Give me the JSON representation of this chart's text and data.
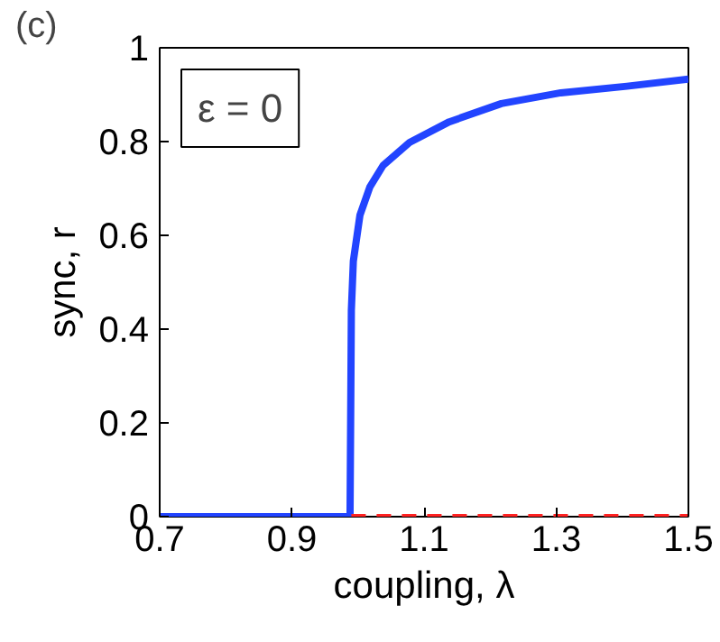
{
  "chart_data": {
    "type": "line",
    "title": "(c)",
    "xlabel": "coupling, λ",
    "ylabel": "sync, r",
    "annotations": [
      "ε = 0"
    ],
    "xlim": [
      0.7,
      1.5
    ],
    "xticks": [
      0.7,
      0.9,
      1.1,
      1.3,
      1.5
    ],
    "ylim": [
      0,
      1
    ],
    "yticks": [
      0,
      0.2,
      0.4,
      0.6,
      0.8,
      1
    ],
    "grid": false,
    "series": [
      {
        "color": "#2244ff",
        "line_style": "solid",
        "x": [
          0.7,
          0.988,
          0.99,
          0.993,
          1.003,
          1.018,
          1.038,
          1.078,
          1.138,
          1.217,
          1.307,
          1.407,
          1.5
        ],
        "values": [
          0,
          0,
          0.44,
          0.545,
          0.643,
          0.703,
          0.749,
          0.798,
          0.842,
          0.881,
          0.904,
          0.918,
          0.933
        ]
      },
      {
        "color": "#ff2222",
        "line_style": "dashed",
        "x": [
          0.99,
          1.5
        ],
        "values": [
          0,
          0
        ]
      }
    ]
  }
}
